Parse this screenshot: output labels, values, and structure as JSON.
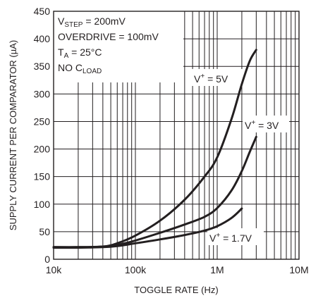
{
  "chart_data": {
    "type": "line",
    "title": "",
    "xlabel": "TOGGLE RATE (Hz)",
    "ylabel": "SUPPLY CURRENT PER COMPARATOR (µA)",
    "xscale": "log",
    "xlim": [
      10000,
      10000000
    ],
    "ylim": [
      0,
      450
    ],
    "grid": true,
    "x_tick_labels": [
      "10k",
      "100k",
      "1M",
      "10M"
    ],
    "y_tick_labels": [
      "0",
      "50",
      "100",
      "150",
      "200",
      "250",
      "300",
      "350",
      "400",
      "450"
    ],
    "conditions": {
      "vstep": {
        "main": "V",
        "sub": "STEP",
        "rest": " = 200mV"
      },
      "overdrive": "OVERDRIVE = 100mV",
      "ta": {
        "main": "T",
        "sub": "A",
        "rest": " = 25°C"
      },
      "cload": {
        "main": "NO C",
        "sub": "LOAD"
      }
    },
    "series": [
      {
        "label": {
          "main": "V",
          "sup": "+",
          "rest": " = 5V"
        },
        "x": [
          10000,
          20000,
          40000,
          60000,
          100000,
          200000,
          400000,
          700000,
          1000000,
          1500000,
          2000000,
          2500000,
          3000000
        ],
        "y": [
          22,
          22,
          23,
          29,
          43,
          70,
          108,
          150,
          185,
          255,
          318,
          360,
          380
        ]
      },
      {
        "label": {
          "main": "V",
          "sup": "+",
          "rest": " = 3V"
        },
        "x": [
          10000,
          20000,
          40000,
          60000,
          100000,
          200000,
          400000,
          700000,
          1000000,
          1500000,
          2000000,
          2500000,
          3000000
        ],
        "y": [
          22,
          22,
          23,
          26,
          34,
          48,
          63,
          77,
          93,
          125,
          160,
          195,
          222
        ]
      },
      {
        "label": {
          "main": "V",
          "sup": "+",
          "rest": " = 1.7V"
        },
        "x": [
          10000,
          20000,
          40000,
          60000,
          100000,
          200000,
          400000,
          700000,
          1000000,
          1500000,
          2000000
        ],
        "y": [
          21,
          21,
          22,
          24,
          29,
          36,
          44,
          52,
          60,
          75,
          92
        ]
      }
    ]
  }
}
